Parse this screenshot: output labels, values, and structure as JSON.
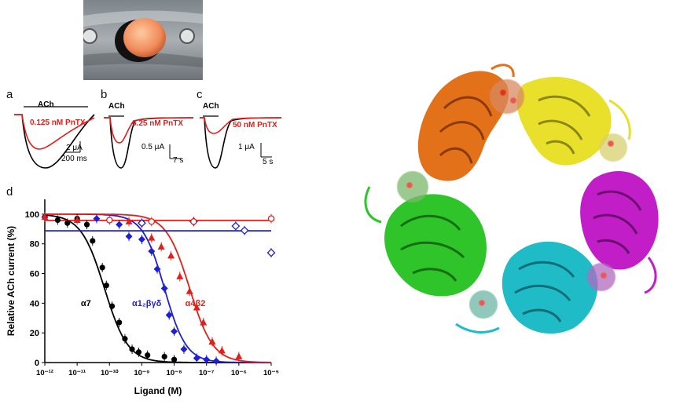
{
  "panels": {
    "a": {
      "letter": "a",
      "stim": "ACh",
      "conc": "0.125 nM PnTX",
      "scale_current": "2 μA",
      "scale_time": "200 ms"
    },
    "b": {
      "letter": "b",
      "stim": "ACh",
      "conc": "6.25 nM PnTX",
      "scale_current": "0.5 μA",
      "scale_time": "7 s"
    },
    "c": {
      "letter": "c",
      "stim": "ACh",
      "conc": "50 nM PnTX",
      "scale_current": "1 μA",
      "scale_time": "5 s"
    },
    "d": {
      "letter": "d"
    }
  },
  "colors": {
    "control_trace": "#000000",
    "toxin_trace": "#e0201b",
    "alpha7": "#000000",
    "a1b1gd": "#1f1fd0",
    "a4b2": "#e0201b"
  },
  "chart_data": {
    "type": "scatter",
    "title": "",
    "xlabel": "Ligand (M)",
    "ylabel": "Relative ACh current (%)",
    "xscale": "log",
    "xlim": [
      1e-12,
      1e-05
    ],
    "ylim": [
      0,
      110
    ],
    "xticks": [
      "10⁻¹²",
      "10⁻¹¹",
      "10⁻¹⁰",
      "10⁻⁹",
      "10⁻⁸",
      "10⁻⁷",
      "10⁻⁶",
      "10⁻⁵"
    ],
    "yticks": [
      0,
      20,
      40,
      60,
      80,
      100
    ],
    "series": [
      {
        "name": "α7",
        "color": "#000000",
        "marker": "circle",
        "points": [
          [
            1e-12,
            98
          ],
          [
            2.5e-12,
            96
          ],
          [
            5e-12,
            94
          ],
          [
            1e-11,
            97
          ],
          [
            2e-11,
            93
          ],
          [
            3e-11,
            82
          ],
          [
            6e-11,
            64
          ],
          [
            8e-11,
            52
          ],
          [
            1.2e-10,
            38
          ],
          [
            2e-10,
            27
          ],
          [
            3e-10,
            16
          ],
          [
            5e-10,
            9
          ],
          [
            8e-10,
            7
          ],
          [
            1.5e-09,
            5
          ],
          [
            5e-09,
            4
          ],
          [
            1e-08,
            2
          ]
        ],
        "fit": {
          "ic50": 7e-11,
          "hill": 1.2
        }
      },
      {
        "name": "α1₂βγδ",
        "color": "#1f1fd0",
        "marker": "diamond",
        "points": [
          [
            1e-12,
            98
          ],
          [
            4e-11,
            97
          ],
          [
            2e-10,
            93
          ],
          [
            4e-10,
            85
          ],
          [
            1e-09,
            83
          ],
          [
            2e-09,
            75
          ],
          [
            3e-09,
            63
          ],
          [
            5e-09,
            50
          ],
          [
            7e-09,
            32
          ],
          [
            1e-08,
            21
          ],
          [
            2e-08,
            9
          ],
          [
            5e-08,
            3
          ],
          [
            1e-07,
            2
          ],
          [
            2e-07,
            1
          ]
        ],
        "fit": {
          "ic50": 5e-09,
          "hill": 1.3
        }
      },
      {
        "name": "α4β2",
        "color": "#e0201b",
        "marker": "triangle",
        "points": [
          [
            1e-12,
            98
          ],
          [
            1e-11,
            96
          ],
          [
            4e-10,
            95
          ],
          [
            2e-09,
            84
          ],
          [
            4e-09,
            78
          ],
          [
            8e-09,
            72
          ],
          [
            1.5e-08,
            58
          ],
          [
            3e-08,
            48
          ],
          [
            5e-08,
            37
          ],
          [
            8e-08,
            27
          ],
          [
            1.5e-07,
            14
          ],
          [
            3e-07,
            8
          ],
          [
            1e-06,
            4
          ]
        ],
        "fit": {
          "ic50": 3e-08,
          "hill": 1.2
        }
      },
      {
        "name": "",
        "color": "#1f1fd0",
        "marker": "open-diamond",
        "points": [
          [
            1e-09,
            94
          ],
          [
            4e-08,
            95
          ],
          [
            8e-07,
            92
          ],
          [
            1.5e-06,
            89
          ],
          [
            1e-05,
            74
          ]
        ]
      },
      {
        "name": "",
        "color": "#e0201b",
        "marker": "open-circle",
        "points": [
          [
            1e-10,
            96
          ],
          [
            2e-09,
            95
          ],
          [
            4e-08,
            95
          ],
          [
            1e-05,
            97
          ]
        ]
      }
    ],
    "labels": [
      "α7",
      "α1₂βγδ",
      "α4β2"
    ],
    "grid": false
  }
}
